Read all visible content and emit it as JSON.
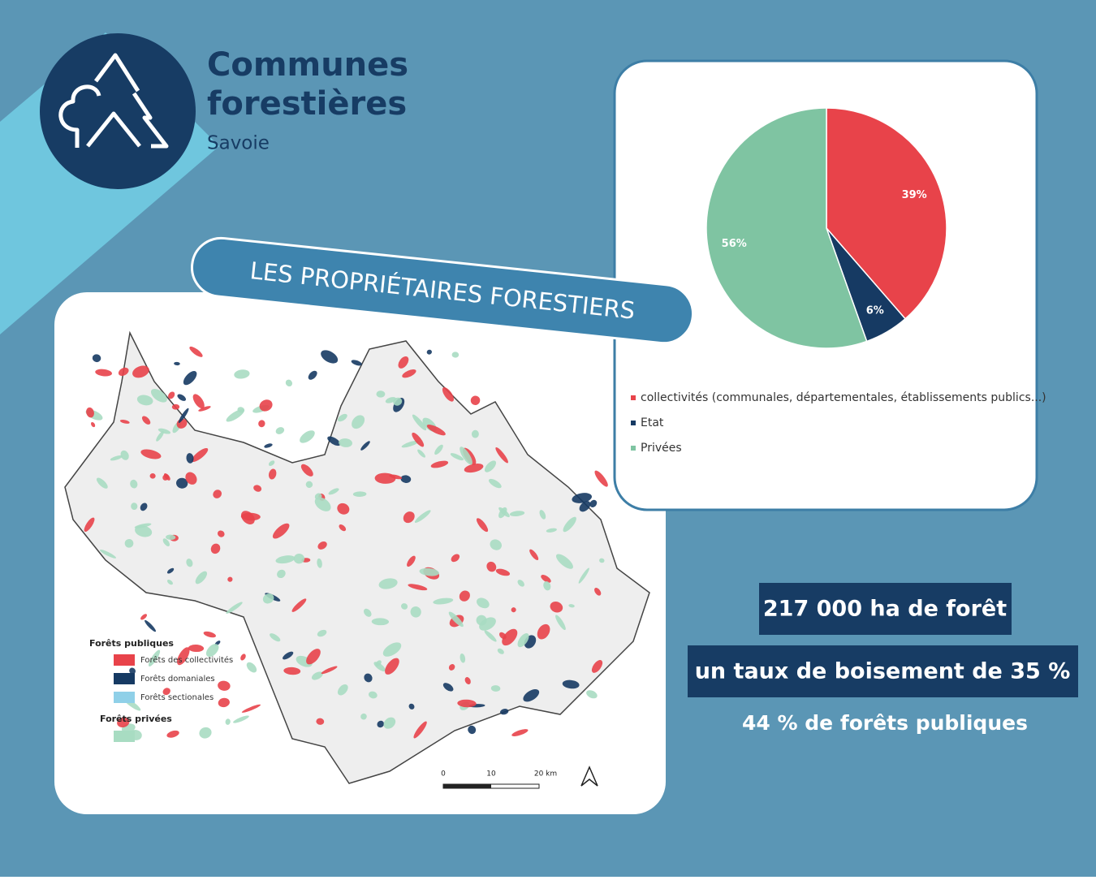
{
  "logo": {
    "line1": "Communes",
    "line2": "forestières",
    "line3": "Savoie"
  },
  "banner": "LES PROPRIÉTAIRES FORESTIERS",
  "chart_data": {
    "type": "pie",
    "categories": [
      "collectivités (communales, départementales, établissements publics...)",
      "Etat",
      "Privées"
    ],
    "values": [
      39,
      6,
      56
    ],
    "value_labels": [
      "39%",
      "6%",
      "56%"
    ],
    "colors": [
      "#e8434a",
      "#163a63",
      "#7fc4a2"
    ]
  },
  "map": {
    "legend_public": "Forêts publiques",
    "legend_items": [
      "Forêts des collectivités",
      "Forêts domaniales",
      "Forêts sectionales"
    ],
    "legend_private": "Forêts privées",
    "scale": [
      "0",
      "10",
      "20 km"
    ]
  },
  "stats": [
    "217 000 ha de forêt",
    "un taux de boisement de 35 %",
    "44 % de forêts publiques"
  ]
}
